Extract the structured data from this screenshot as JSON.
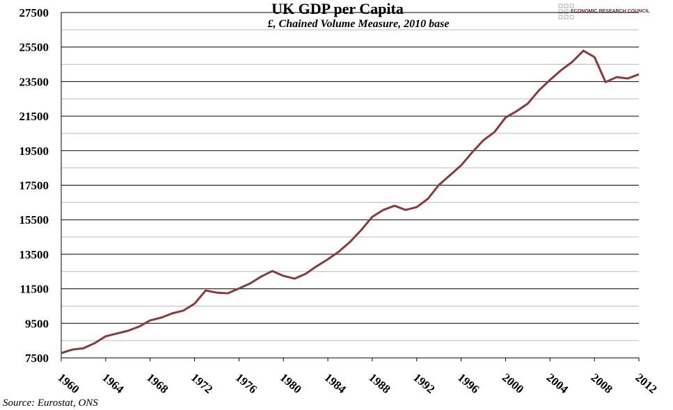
{
  "chart_data": {
    "type": "line",
    "title": "UK GDP per Capita",
    "subtitle": "£, Chained Volume Measure, 2010 base",
    "source": "Source: Eurostat, ONS",
    "logo": "ECONOMIC RESEARCH COUNCIL",
    "x": [
      1960,
      1961,
      1962,
      1963,
      1964,
      1965,
      1966,
      1967,
      1968,
      1969,
      1970,
      1971,
      1972,
      1973,
      1974,
      1975,
      1976,
      1977,
      1978,
      1979,
      1980,
      1981,
      1982,
      1983,
      1984,
      1985,
      1986,
      1987,
      1988,
      1989,
      1990,
      1991,
      1992,
      1993,
      1994,
      1995,
      1996,
      1997,
      1998,
      1999,
      2000,
      2001,
      2002,
      2003,
      2004,
      2005,
      2006,
      2007,
      2008,
      2009,
      2010,
      2011,
      2012
    ],
    "series": [
      {
        "name": "GDP per capita",
        "color": "#8b3a3a",
        "values": [
          7780,
          7980,
          8060,
          8350,
          8750,
          8910,
          9070,
          9310,
          9670,
          9830,
          10080,
          10240,
          10640,
          11400,
          11280,
          11240,
          11520,
          11810,
          12210,
          12530,
          12250,
          12090,
          12370,
          12810,
          13210,
          13660,
          14220,
          14900,
          15670,
          16070,
          16310,
          16070,
          16230,
          16710,
          17520,
          18080,
          18650,
          19410,
          20100,
          20580,
          21420,
          21790,
          22230,
          22990,
          23600,
          24160,
          24640,
          25290,
          24920,
          23470,
          23760,
          23680,
          23920
        ]
      }
    ],
    "xlim": [
      1960,
      2012
    ],
    "xticks": [
      1960,
      1964,
      1968,
      1972,
      1976,
      1980,
      1984,
      1988,
      1992,
      1996,
      2000,
      2004,
      2008,
      2012
    ],
    "ylim": [
      7500,
      27500
    ],
    "yticks": [
      7500,
      9500,
      11500,
      13500,
      15500,
      17500,
      19500,
      21500,
      23500,
      25500,
      27500
    ],
    "minor_yticks": [
      8500,
      10500,
      12500,
      14500,
      16500,
      18500,
      20500,
      22500,
      24500,
      26500
    ],
    "grid": true
  }
}
